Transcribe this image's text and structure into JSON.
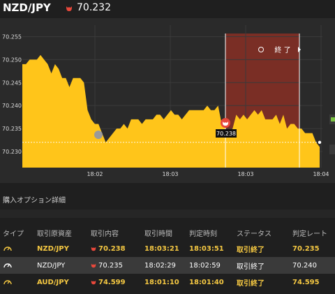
{
  "header": {
    "pair": "NZD/JPY",
    "price": "70.232"
  },
  "colors": {
    "accent": "#ffc51a",
    "down": "#e8483b",
    "expired_zone": "#7a2e25",
    "row_alt": "#3a3a3a"
  },
  "chart_data": {
    "type": "area",
    "y_ticks": [
      "70.255",
      "70.250",
      "70.245",
      "70.240",
      "70.235",
      "70.230"
    ],
    "x_ticks": [
      "18:02",
      "18:03",
      "18:03",
      "18:04"
    ],
    "ylim": [
      70.2265,
      70.2575
    ],
    "current_price": 70.232,
    "marker_label": "70.238",
    "expired_label": "終 了",
    "series": [
      {
        "values": [
          70.249,
          70.249,
          70.25,
          70.25,
          70.25,
          70.251,
          70.25,
          70.249,
          70.247,
          70.249,
          70.248,
          70.246,
          70.246,
          70.244,
          70.246,
          70.246,
          70.246,
          70.245,
          70.239,
          70.237,
          70.236,
          70.236,
          70.234,
          70.232,
          70.233,
          70.234,
          70.235,
          70.235,
          70.236,
          70.235,
          70.237,
          70.237,
          70.237,
          70.236,
          70.237,
          70.237,
          70.237,
          70.238,
          70.238,
          70.237,
          70.238,
          70.239,
          70.238,
          70.238,
          70.237,
          70.238,
          70.239,
          70.239,
          70.239,
          70.239,
          70.239,
          70.24,
          70.239,
          70.239,
          70.24,
          70.236,
          70.235,
          70.234,
          70.235,
          70.238,
          70.237,
          70.238,
          70.237,
          70.238,
          70.239,
          70.238,
          70.239,
          70.237,
          70.237,
          70.237,
          70.238,
          70.236,
          70.238,
          70.235,
          70.236,
          70.236,
          70.235,
          70.235,
          70.234,
          70.234,
          70.234,
          70.232,
          70.231
        ]
      }
    ]
  },
  "section_title": "購入オプション詳細",
  "table": {
    "columns": [
      "タイプ",
      "取引原資産",
      "取引内容",
      "取引時間",
      "判定時刻",
      "ステータス",
      "判定レート"
    ],
    "rows": [
      {
        "type_icon": "gauge-icon",
        "asset": "NZD/JPY",
        "content": "70.238",
        "time": "18:03:21",
        "judge": "18:03:51",
        "status": "取引終了",
        "rate": "70.235"
      },
      {
        "type_icon": "gauge-icon",
        "asset": "NZD/JPY",
        "content": "70.235",
        "time": "18:02:29",
        "judge": "18:02:59",
        "status": "取引終了",
        "rate": "70.240"
      },
      {
        "type_icon": "gauge-icon",
        "asset": "AUD/JPY",
        "content": "74.599",
        "time": "18:01:10",
        "judge": "18:01:40",
        "status": "取引終了",
        "rate": "74.595"
      }
    ]
  }
}
